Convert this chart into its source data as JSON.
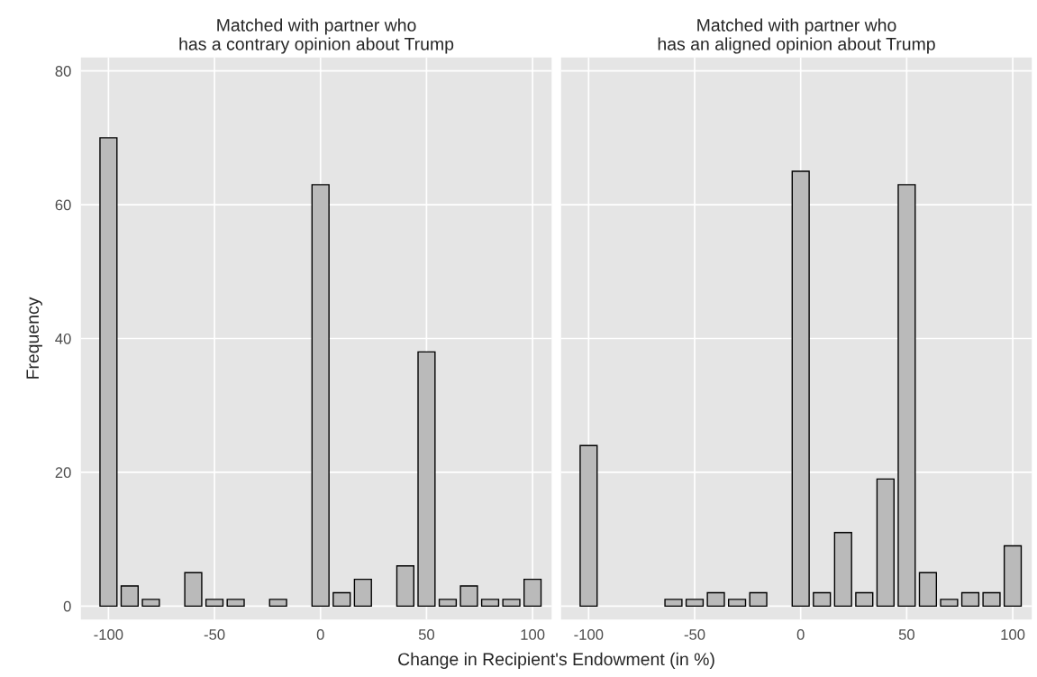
{
  "chart_data": [
    {
      "type": "bar",
      "title": "Matched with partner who\nhas a contrary opinion about Trump",
      "xlabel": "Change in Recipient's Endowment (in %)",
      "ylabel": "Frequency",
      "series": [
        {
          "color": "#bababa",
          "x": [
            -100,
            -90,
            -80,
            -60,
            -50,
            -40,
            -20,
            0,
            10,
            20,
            40,
            50,
            60,
            70,
            80,
            90,
            100
          ],
          "values": [
            70,
            3,
            1,
            5,
            1,
            1,
            1,
            63,
            2,
            4,
            6,
            38,
            1,
            3,
            1,
            1,
            4
          ]
        }
      ],
      "xlim": [
        -113,
        109
      ],
      "xticks": [
        -100,
        -50,
        0,
        50,
        100
      ],
      "ylim": [
        -2,
        82
      ],
      "yticks": [
        0,
        20,
        40,
        60,
        80
      ],
      "grid": true
    },
    {
      "type": "bar",
      "title": "Matched with partner who\nhas an aligned opinion about Trump",
      "series": [
        {
          "color": "#bababa",
          "x": [
            -100,
            -60,
            -50,
            -40,
            -30,
            -20,
            0,
            10,
            20,
            30,
            40,
            50,
            60,
            70,
            80,
            90,
            100
          ],
          "values": [
            24,
            1,
            1,
            2,
            1,
            2,
            65,
            2,
            11,
            2,
            19,
            63,
            5,
            1,
            2,
            2,
            9
          ]
        }
      ],
      "xlim": [
        -113,
        109
      ],
      "xticks": [
        -100,
        -50,
        0,
        50,
        100
      ],
      "ylim": [
        -2,
        82
      ],
      "yticks": [
        0,
        20,
        40,
        60,
        80
      ],
      "grid": true,
      "tick_labels": "x"
    }
  ]
}
